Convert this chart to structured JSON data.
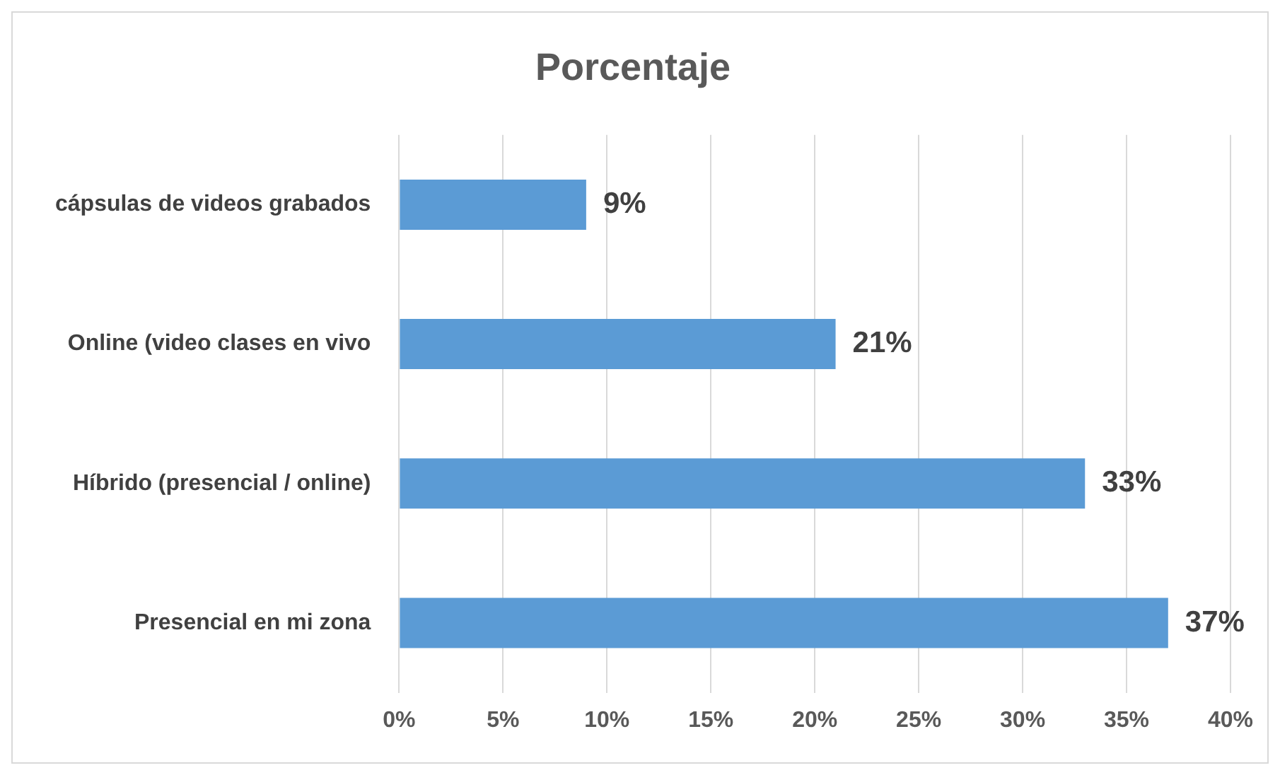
{
  "chart_data": {
    "type": "bar",
    "orientation": "horizontal",
    "title": "Porcentaje",
    "categories": [
      "cápsulas de videos grabados",
      "Online (video clases en vivo",
      "Híbrido (presencial / online)",
      "Presencial en mi zona"
    ],
    "values": [
      9,
      21,
      33,
      37
    ],
    "color": "#5b9bd5",
    "value_labels": [
      "9%",
      "21%",
      "33%",
      "37%"
    ],
    "xlim": [
      0,
      40
    ],
    "xticks": [
      {
        "value": 0,
        "label": "0%"
      },
      {
        "value": 5,
        "label": "5%"
      },
      {
        "value": 10,
        "label": "10%"
      },
      {
        "value": 15,
        "label": "15%"
      },
      {
        "value": 20,
        "label": "20%"
      },
      {
        "value": 25,
        "label": "25%"
      },
      {
        "value": 30,
        "label": "30%"
      },
      {
        "value": 35,
        "label": "35%"
      },
      {
        "value": 40,
        "label": "40%"
      }
    ],
    "grid": "x",
    "legend": false
  }
}
